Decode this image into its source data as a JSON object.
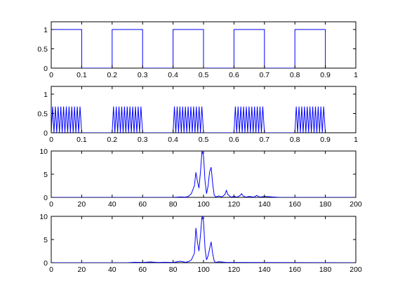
{
  "figure": {
    "background": "#ffffff",
    "line_color": "#0000ff",
    "axis_color": "#000000"
  },
  "chart_data": [
    {
      "type": "line",
      "title": "",
      "xlabel": "",
      "ylabel": "",
      "xlim": [
        0,
        1
      ],
      "ylim": [
        0,
        1.2
      ],
      "xticks": [
        0,
        0.1,
        0.2,
        0.3,
        0.4,
        0.5,
        0.6,
        0.7,
        0.8,
        0.9,
        1
      ],
      "xtick_labels": [
        "0",
        "0.1",
        "0.2",
        "0.3",
        "0.4",
        "0.5",
        "0.6",
        "0.7",
        "0.8",
        "0.9",
        "1"
      ],
      "yticks": [
        0,
        0.5,
        1
      ],
      "ytick_labels": [
        "0",
        "0.5",
        "1"
      ],
      "grid": false,
      "series": [
        {
          "x": [
            0,
            0.1,
            0.1,
            0.2,
            0.2,
            0.3,
            0.3,
            0.4,
            0.4,
            0.5,
            0.5,
            0.6,
            0.6,
            0.7,
            0.7,
            0.8,
            0.8,
            0.9,
            0.9
          ],
          "y": [
            1,
            1,
            0,
            0,
            1,
            1,
            0,
            0,
            1,
            1,
            0,
            0,
            1,
            1,
            0,
            0,
            1,
            1,
            0
          ]
        }
      ]
    },
    {
      "type": "line",
      "title": "",
      "xlabel": "",
      "ylabel": "",
      "xlim": [
        0,
        1
      ],
      "ylim": [
        0,
        1.2
      ],
      "xticks": [
        0,
        0.1,
        0.2,
        0.3,
        0.4,
        0.5,
        0.6,
        0.7,
        0.8,
        0.9,
        1
      ],
      "xtick_labels": [
        "0",
        "0.1",
        "0.2",
        "0.3",
        "0.4",
        "0.5",
        "0.6",
        "0.7",
        "0.8",
        "0.9",
        "1"
      ],
      "yticks": [
        0,
        0.5,
        1
      ],
      "ytick_labels": [
        "0",
        "0.5",
        "1"
      ],
      "grid": false,
      "series": [
        {
          "x": [
            0,
            0.0045,
            0.009,
            0.0135,
            0.018,
            0.0225,
            0.027,
            0.0315,
            0.036,
            0.0405,
            0.045,
            0.0495,
            0.054,
            0.0585,
            0.063,
            0.0675,
            0.072,
            0.0765,
            0.081,
            0.0855,
            0.09,
            0.0945,
            0.1,
            0.2,
            0.2045,
            0.209,
            0.2135,
            0.218,
            0.2225,
            0.227,
            0.2315,
            0.236,
            0.2405,
            0.245,
            0.2495,
            0.254,
            0.2585,
            0.263,
            0.2675,
            0.272,
            0.2765,
            0.281,
            0.2855,
            0.29,
            0.2945,
            0.3,
            0.4,
            0.4045,
            0.409,
            0.4135,
            0.418,
            0.4225,
            0.427,
            0.4315,
            0.436,
            0.4405,
            0.445,
            0.4495,
            0.454,
            0.4585,
            0.463,
            0.4675,
            0.472,
            0.4765,
            0.481,
            0.4855,
            0.49,
            0.4945,
            0.5,
            0.6,
            0.6045,
            0.609,
            0.6135,
            0.618,
            0.6225,
            0.627,
            0.6315,
            0.636,
            0.6405,
            0.645,
            0.6495,
            0.654,
            0.6585,
            0.663,
            0.6675,
            0.672,
            0.6765,
            0.681,
            0.6855,
            0.69,
            0.6945,
            0.7,
            0.8,
            0.8045,
            0.809,
            0.8135,
            0.818,
            0.8225,
            0.827,
            0.8315,
            0.836,
            0.8405,
            0.845,
            0.8495,
            0.854,
            0.8585,
            0.863,
            0.8675,
            0.872,
            0.8765,
            0.881,
            0.8855,
            0.89,
            0.8945,
            0.9
          ],
          "y": [
            0,
            0.68,
            0,
            0.68,
            0,
            0.68,
            0,
            0.68,
            0,
            0.68,
            0,
            0.68,
            0,
            0.68,
            0,
            0.68,
            0,
            0.68,
            0,
            0.68,
            0,
            0.68,
            0,
            0,
            0.68,
            0,
            0.68,
            0,
            0.68,
            0,
            0.68,
            0,
            0.68,
            0,
            0.68,
            0,
            0.68,
            0,
            0.68,
            0,
            0.68,
            0,
            0.68,
            0,
            0.68,
            0,
            0,
            0.68,
            0,
            0.68,
            0,
            0.68,
            0,
            0.68,
            0,
            0.68,
            0,
            0.68,
            0,
            0.68,
            0,
            0.68,
            0,
            0.68,
            0,
            0.68,
            0,
            0.68,
            0,
            0,
            0.68,
            0,
            0.68,
            0,
            0.68,
            0,
            0.68,
            0,
            0.68,
            0,
            0.68,
            0,
            0.68,
            0,
            0.68,
            0,
            0.68,
            0,
            0.68,
            0,
            0.68,
            0,
            0,
            0.68,
            0,
            0.68,
            0,
            0.68,
            0,
            0.68,
            0,
            0.68,
            0,
            0.68,
            0,
            0.68,
            0,
            0.68,
            0,
            0.68,
            0,
            0.68,
            0,
            0.68,
            0
          ]
        }
      ]
    },
    {
      "type": "line",
      "title": "",
      "xlabel": "",
      "ylabel": "",
      "xlim": [
        0,
        200
      ],
      "ylim": [
        0,
        10
      ],
      "xticks": [
        0,
        20,
        40,
        60,
        80,
        100,
        120,
        140,
        160,
        180,
        200
      ],
      "xtick_labels": [
        "0",
        "20",
        "40",
        "60",
        "80",
        "100",
        "120",
        "140",
        "160",
        "180",
        "200"
      ],
      "yticks": [
        0,
        5,
        10
      ],
      "ytick_labels": [
        "0",
        "5",
        "10"
      ],
      "grid": false,
      "series": [
        {
          "x": [
            0,
            80,
            85,
            88,
            90,
            92,
            94,
            95,
            96,
            97,
            98,
            99,
            100,
            101,
            102,
            103,
            104,
            105,
            106,
            107,
            108,
            110,
            112,
            114,
            115,
            116,
            118,
            120,
            122,
            124,
            125,
            126,
            128,
            130,
            133,
            135,
            137,
            140,
            145,
            150,
            200
          ],
          "y": [
            0,
            0,
            0.1,
            0.05,
            0.2,
            0.8,
            2.5,
            5.4,
            3.5,
            2.0,
            5.5,
            10.0,
            9.0,
            3.5,
            0.8,
            2.5,
            5.5,
            6.5,
            3.0,
            0.5,
            0.1,
            0.3,
            0.1,
            0.6,
            1.5,
            0.6,
            0.05,
            0.2,
            0.05,
            0.4,
            0.8,
            0.3,
            0.05,
            0.2,
            0.05,
            0.4,
            0.05,
            0.2,
            0.1,
            0,
            0
          ]
        }
      ]
    },
    {
      "type": "line",
      "title": "",
      "xlabel": "",
      "ylabel": "",
      "xlim": [
        0,
        200
      ],
      "ylim": [
        0,
        10
      ],
      "xticks": [
        0,
        20,
        40,
        60,
        80,
        100,
        120,
        140,
        160,
        180,
        200
      ],
      "xtick_labels": [
        "0",
        "20",
        "40",
        "60",
        "80",
        "100",
        "120",
        "140",
        "160",
        "180",
        "200"
      ],
      "yticks": [
        0,
        5,
        10
      ],
      "ytick_labels": [
        "0",
        "5",
        "10"
      ],
      "grid": false,
      "series": [
        {
          "x": [
            0,
            50,
            55,
            60,
            65,
            70,
            75,
            80,
            85,
            88,
            90,
            92,
            94,
            95,
            96,
            97,
            98,
            99,
            100,
            101,
            102,
            103,
            104,
            105,
            106,
            107,
            108,
            110,
            115,
            120,
            200
          ],
          "y": [
            0,
            0,
            0.1,
            0.05,
            0.15,
            0.05,
            0.1,
            0.05,
            0.3,
            0.1,
            0.2,
            0.6,
            2.0,
            7.5,
            4.5,
            2.5,
            6.0,
            10.0,
            9.0,
            3.0,
            0.6,
            1.5,
            3.0,
            4.5,
            2.0,
            0.4,
            0.05,
            0.2,
            0.05,
            0.05,
            0
          ]
        }
      ]
    }
  ]
}
